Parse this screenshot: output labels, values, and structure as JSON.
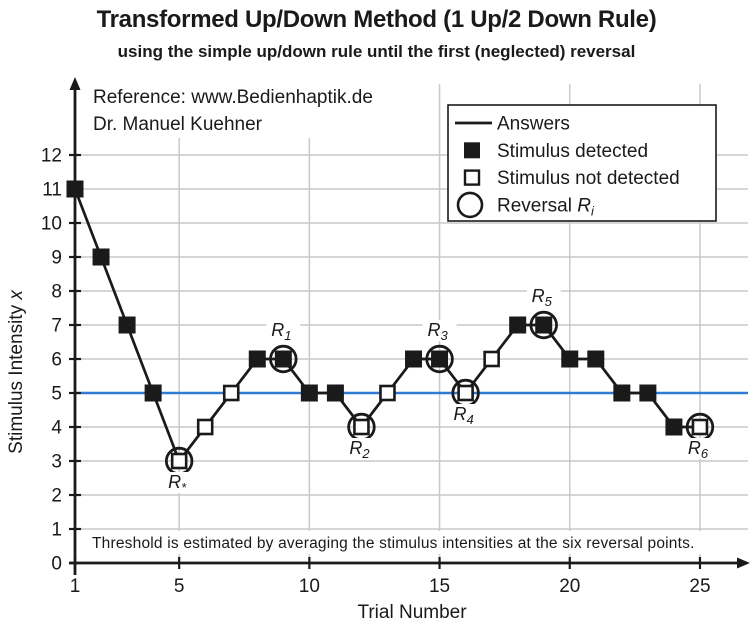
{
  "page": {
    "title": "Transformed Up/Down Method (1 Up/2 Down Rule)",
    "subtitle": "using the simple up/down rule until the first (neglected) reversal"
  },
  "annotations": {
    "reference_line1": "Reference: www.Bedienhaptik.de",
    "reference_line2": "Dr. Manuel Kuehner",
    "threshold_note": "Threshold is estimated by averaging the stimulus intensities at the six reversal points."
  },
  "colors": {
    "answers_line": "#2f7bd3",
    "series": "#1a1a1a",
    "grid": "#c9c9c9",
    "background": "#ffffff"
  },
  "chart_data": {
    "type": "line",
    "title": "Transformed Up/Down Method (1 Up/2 Down Rule)",
    "xlabel": "Trial Number",
    "ylabel": "Stimulus Intensity",
    "ylabel_math_suffix": "x",
    "xlim": [
      1,
      26.5
    ],
    "ylim": [
      0,
      12
    ],
    "xticks": [
      1,
      5,
      10,
      15,
      20,
      25
    ],
    "yticks": [
      0,
      1,
      2,
      3,
      4,
      5,
      6,
      7,
      8,
      9,
      10,
      11,
      12
    ],
    "grid": true,
    "answers_line_value": 5,
    "reversal_label_base": "R",
    "points": [
      {
        "trial": 1,
        "intensity": 11,
        "detected": true
      },
      {
        "trial": 2,
        "intensity": 9,
        "detected": true
      },
      {
        "trial": 3,
        "intensity": 7,
        "detected": true
      },
      {
        "trial": 4,
        "intensity": 5,
        "detected": true
      },
      {
        "trial": 5,
        "intensity": 3,
        "detected": false,
        "reversal": {
          "sub": "*",
          "pos": "below"
        }
      },
      {
        "trial": 6,
        "intensity": 4,
        "detected": false
      },
      {
        "trial": 7,
        "intensity": 5,
        "detected": false
      },
      {
        "trial": 8,
        "intensity": 6,
        "detected": true
      },
      {
        "trial": 9,
        "intensity": 6,
        "detected": true,
        "reversal": {
          "sub": "1",
          "pos": "above"
        }
      },
      {
        "trial": 10,
        "intensity": 5,
        "detected": true
      },
      {
        "trial": 11,
        "intensity": 5,
        "detected": true
      },
      {
        "trial": 12,
        "intensity": 4,
        "detected": false,
        "reversal": {
          "sub": "2",
          "pos": "below"
        }
      },
      {
        "trial": 13,
        "intensity": 5,
        "detected": false
      },
      {
        "trial": 14,
        "intensity": 6,
        "detected": true
      },
      {
        "trial": 15,
        "intensity": 6,
        "detected": true,
        "reversal": {
          "sub": "3",
          "pos": "above"
        }
      },
      {
        "trial": 16,
        "intensity": 5,
        "detected": false,
        "reversal": {
          "sub": "4",
          "pos": "below"
        }
      },
      {
        "trial": 17,
        "intensity": 6,
        "detected": false
      },
      {
        "trial": 18,
        "intensity": 7,
        "detected": true
      },
      {
        "trial": 19,
        "intensity": 7,
        "detected": true,
        "reversal": {
          "sub": "5",
          "pos": "above"
        }
      },
      {
        "trial": 20,
        "intensity": 6,
        "detected": true
      },
      {
        "trial": 21,
        "intensity": 6,
        "detected": true
      },
      {
        "trial": 22,
        "intensity": 5,
        "detected": true
      },
      {
        "trial": 23,
        "intensity": 5,
        "detected": true
      },
      {
        "trial": 24,
        "intensity": 4,
        "detected": true
      },
      {
        "trial": 25,
        "intensity": 4,
        "detected": false,
        "reversal": {
          "sub": "6",
          "pos": "below"
        }
      }
    ],
    "legend": {
      "position": "top-right",
      "items": [
        {
          "marker": "line",
          "label": "Answers"
        },
        {
          "marker": "filled-square",
          "label": "Stimulus detected"
        },
        {
          "marker": "open-square",
          "label": "Stimulus not detected"
        },
        {
          "marker": "circle",
          "label": "Reversal",
          "math_base": "R",
          "math_sub": "i"
        }
      ]
    }
  }
}
